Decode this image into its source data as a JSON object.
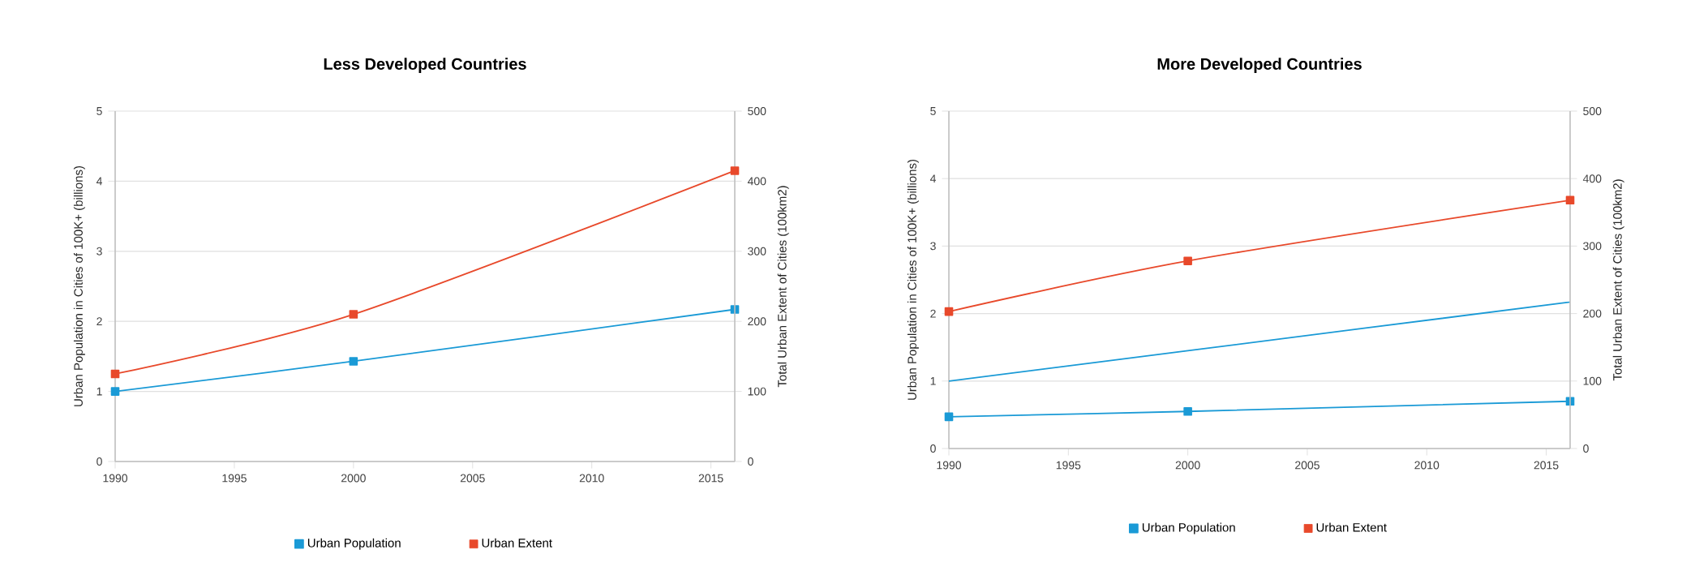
{
  "chart_data": [
    {
      "type": "line",
      "title": "Less Developed Countries",
      "ylabel": "Urban Population in Cities of 100K+ (billions)",
      "y2label": "Total Urban Extent of Cities (100km2)",
      "xlim": [
        1990,
        2016
      ],
      "xticks": [
        1990,
        1995,
        2000,
        2005,
        2010,
        2015
      ],
      "ylim": [
        0,
        5
      ],
      "yticks": [
        0,
        1,
        2,
        3,
        4,
        5
      ],
      "y2lim": [
        0,
        500
      ],
      "y2ticks": [
        0,
        100,
        200,
        300,
        400,
        500
      ],
      "grid": "y",
      "legend": "bottom",
      "marker": "square",
      "series": [
        {
          "name": "Urban Population",
          "color": "#1a9ad6",
          "x": [
            1990,
            2000,
            2016
          ],
          "values": [
            1.0,
            1.43,
            2.17
          ]
        },
        {
          "name": "Urban Extent",
          "color": "#e8492b",
          "axis": "y2",
          "x": [
            1990,
            2000,
            2016
          ],
          "values": [
            125,
            210,
            415
          ]
        }
      ]
    },
    {
      "type": "line",
      "title": "More Developed Countries",
      "ylabel": "Urban Population in Cities of 100K+ (billions)",
      "y2label": "Total Urban Extent of Cities (100km2)",
      "xlim": [
        1990,
        2016
      ],
      "xticks": [
        1990,
        1995,
        2000,
        2005,
        2010,
        2015
      ],
      "ylim": [
        0,
        5
      ],
      "yticks": [
        0,
        1,
        2,
        3,
        4,
        5
      ],
      "y2lim": [
        0,
        500
      ],
      "y2ticks": [
        0,
        100,
        200,
        300,
        400,
        500
      ],
      "grid": "y",
      "legend": "bottom",
      "marker": "square",
      "series": [
        {
          "name": "Urban Population",
          "color": "#1a9ad6",
          "x": [
            1990,
            2000,
            2016
          ],
          "values": [
            0.47,
            0.55,
            0.7
          ]
        },
        {
          "name": "Urban Extent",
          "color": "#e8492b",
          "axis": "y2",
          "x": [
            1990,
            2000,
            2016
          ],
          "values": [
            203,
            278,
            368
          ]
        },
        {
          "color": "#1a9ad6",
          "marker": "none",
          "x": [
            1990,
            2000,
            2016
          ],
          "values": [
            1.0,
            1.45,
            2.17
          ]
        }
      ]
    }
  ]
}
